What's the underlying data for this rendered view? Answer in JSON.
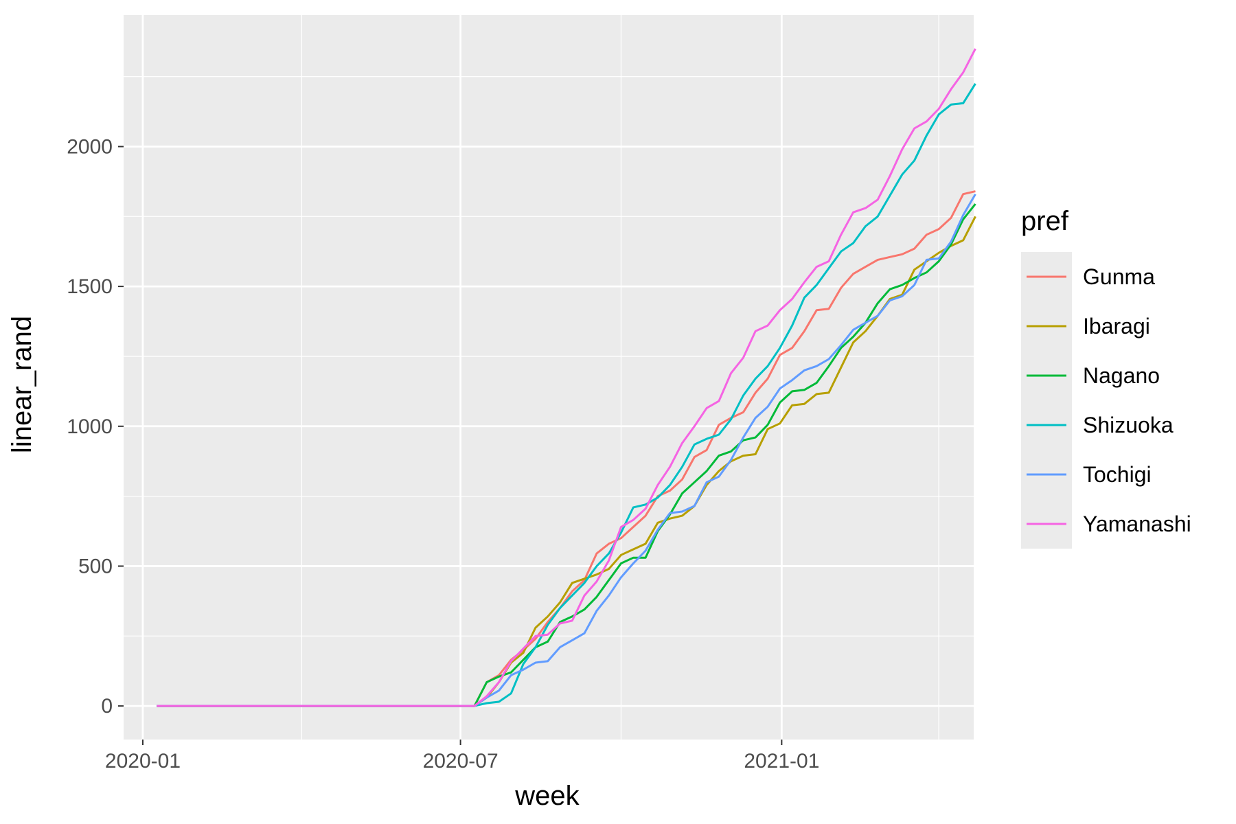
{
  "chart_data": {
    "type": "line",
    "xlabel": "week",
    "ylabel": "linear_rand",
    "x_type": "date",
    "xlim": [
      "2019-12-21",
      "2021-04-21"
    ],
    "ylim": [
      -120,
      2470
    ],
    "x_ticks": [
      {
        "date": "2020-01-01",
        "label": "2020-01"
      },
      {
        "date": "2020-07-01",
        "label": "2020-07"
      },
      {
        "date": "2021-01-01",
        "label": "2021-01"
      }
    ],
    "x_minor_ticks": [
      "2020-04-01",
      "2020-10-01",
      "2021-04-01"
    ],
    "y_ticks": [
      0,
      500,
      1000,
      1500,
      2000
    ],
    "y_minor_ticks": [
      250,
      750,
      1250,
      1750,
      2250
    ],
    "grid": true,
    "panel_color": "#ebebeb",
    "grid_color": "#ffffff",
    "legend": {
      "title": "pref",
      "position": "right"
    },
    "series": [
      {
        "name": "Gunma",
        "color": "#F8766D",
        "points": [
          [
            "2020-01-09",
            0
          ],
          [
            "2020-07-09",
            0
          ],
          [
            "2020-07-16",
            85
          ],
          [
            "2020-07-23",
            110
          ],
          [
            "2020-07-30",
            165
          ],
          [
            "2020-08-06",
            200
          ],
          [
            "2020-08-13",
            240
          ],
          [
            "2020-08-20",
            300
          ],
          [
            "2020-08-27",
            350
          ],
          [
            "2020-09-03",
            410
          ],
          [
            "2020-09-10",
            450
          ],
          [
            "2020-09-17",
            545
          ],
          [
            "2020-09-24",
            580
          ],
          [
            "2020-10-01",
            600
          ],
          [
            "2020-10-08",
            640
          ],
          [
            "2020-10-15",
            680
          ],
          [
            "2020-10-22",
            750
          ],
          [
            "2020-10-29",
            770
          ],
          [
            "2020-11-05",
            810
          ],
          [
            "2020-11-12",
            890
          ],
          [
            "2020-11-19",
            915
          ],
          [
            "2020-11-26",
            1005
          ],
          [
            "2020-12-03",
            1030
          ],
          [
            "2020-12-10",
            1050
          ],
          [
            "2020-12-17",
            1120
          ],
          [
            "2020-12-24",
            1170
          ],
          [
            "2020-12-31",
            1255
          ],
          [
            "2021-01-07",
            1280
          ],
          [
            "2021-01-14",
            1340
          ],
          [
            "2021-01-21",
            1415
          ],
          [
            "2021-01-28",
            1420
          ],
          [
            "2021-02-04",
            1495
          ],
          [
            "2021-02-11",
            1545
          ],
          [
            "2021-02-18",
            1570
          ],
          [
            "2021-02-25",
            1595
          ],
          [
            "2021-03-04",
            1605
          ],
          [
            "2021-03-11",
            1615
          ],
          [
            "2021-03-18",
            1635
          ],
          [
            "2021-03-25",
            1685
          ],
          [
            "2021-04-01",
            1705
          ],
          [
            "2021-04-08",
            1745
          ],
          [
            "2021-04-15",
            1830
          ],
          [
            "2021-04-22",
            1840
          ]
        ]
      },
      {
        "name": "Ibaragi",
        "color": "#B79F00",
        "points": [
          [
            "2020-01-09",
            0
          ],
          [
            "2020-07-09",
            0
          ],
          [
            "2020-07-16",
            30
          ],
          [
            "2020-07-23",
            85
          ],
          [
            "2020-07-30",
            155
          ],
          [
            "2020-08-06",
            190
          ],
          [
            "2020-08-13",
            280
          ],
          [
            "2020-08-20",
            320
          ],
          [
            "2020-08-27",
            370
          ],
          [
            "2020-09-03",
            440
          ],
          [
            "2020-09-10",
            455
          ],
          [
            "2020-09-17",
            470
          ],
          [
            "2020-09-24",
            490
          ],
          [
            "2020-10-01",
            540
          ],
          [
            "2020-10-08",
            560
          ],
          [
            "2020-10-15",
            580
          ],
          [
            "2020-10-22",
            655
          ],
          [
            "2020-10-29",
            670
          ],
          [
            "2020-11-05",
            680
          ],
          [
            "2020-11-12",
            715
          ],
          [
            "2020-11-19",
            790
          ],
          [
            "2020-11-26",
            840
          ],
          [
            "2020-12-03",
            875
          ],
          [
            "2020-12-10",
            895
          ],
          [
            "2020-12-17",
            900
          ],
          [
            "2020-12-24",
            990
          ],
          [
            "2020-12-31",
            1010
          ],
          [
            "2021-01-07",
            1075
          ],
          [
            "2021-01-14",
            1080
          ],
          [
            "2021-01-21",
            1115
          ],
          [
            "2021-01-28",
            1120
          ],
          [
            "2021-02-04",
            1210
          ],
          [
            "2021-02-11",
            1300
          ],
          [
            "2021-02-18",
            1340
          ],
          [
            "2021-02-25",
            1395
          ],
          [
            "2021-03-04",
            1455
          ],
          [
            "2021-03-11",
            1470
          ],
          [
            "2021-03-18",
            1560
          ],
          [
            "2021-03-25",
            1590
          ],
          [
            "2021-04-01",
            1620
          ],
          [
            "2021-04-08",
            1645
          ],
          [
            "2021-04-15",
            1665
          ],
          [
            "2021-04-22",
            1750
          ]
        ]
      },
      {
        "name": "Nagano",
        "color": "#00BA38",
        "points": [
          [
            "2020-01-09",
            0
          ],
          [
            "2020-07-09",
            0
          ],
          [
            "2020-07-16",
            85
          ],
          [
            "2020-07-23",
            105
          ],
          [
            "2020-07-30",
            120
          ],
          [
            "2020-08-06",
            165
          ],
          [
            "2020-08-13",
            210
          ],
          [
            "2020-08-20",
            230
          ],
          [
            "2020-08-27",
            300
          ],
          [
            "2020-09-03",
            320
          ],
          [
            "2020-09-10",
            345
          ],
          [
            "2020-09-17",
            390
          ],
          [
            "2020-09-24",
            450
          ],
          [
            "2020-10-01",
            510
          ],
          [
            "2020-10-08",
            530
          ],
          [
            "2020-10-15",
            530
          ],
          [
            "2020-10-22",
            625
          ],
          [
            "2020-10-29",
            685
          ],
          [
            "2020-11-05",
            760
          ],
          [
            "2020-11-12",
            800
          ],
          [
            "2020-11-19",
            840
          ],
          [
            "2020-11-26",
            895
          ],
          [
            "2020-12-03",
            910
          ],
          [
            "2020-12-10",
            950
          ],
          [
            "2020-12-17",
            960
          ],
          [
            "2020-12-24",
            1005
          ],
          [
            "2020-12-31",
            1085
          ],
          [
            "2021-01-07",
            1125
          ],
          [
            "2021-01-14",
            1130
          ],
          [
            "2021-01-21",
            1155
          ],
          [
            "2021-01-28",
            1215
          ],
          [
            "2021-02-04",
            1280
          ],
          [
            "2021-02-11",
            1320
          ],
          [
            "2021-02-18",
            1370
          ],
          [
            "2021-02-25",
            1440
          ],
          [
            "2021-03-04",
            1490
          ],
          [
            "2021-03-11",
            1505
          ],
          [
            "2021-03-18",
            1530
          ],
          [
            "2021-03-25",
            1550
          ],
          [
            "2021-04-01",
            1590
          ],
          [
            "2021-04-08",
            1650
          ],
          [
            "2021-04-15",
            1740
          ],
          [
            "2021-04-22",
            1795
          ]
        ]
      },
      {
        "name": "Shizuoka",
        "color": "#00BFC4",
        "points": [
          [
            "2020-01-09",
            0
          ],
          [
            "2020-07-09",
            0
          ],
          [
            "2020-07-16",
            10
          ],
          [
            "2020-07-23",
            15
          ],
          [
            "2020-07-30",
            45
          ],
          [
            "2020-08-06",
            150
          ],
          [
            "2020-08-13",
            210
          ],
          [
            "2020-08-20",
            290
          ],
          [
            "2020-08-27",
            350
          ],
          [
            "2020-09-03",
            395
          ],
          [
            "2020-09-10",
            440
          ],
          [
            "2020-09-17",
            500
          ],
          [
            "2020-09-24",
            545
          ],
          [
            "2020-10-01",
            620
          ],
          [
            "2020-10-08",
            710
          ],
          [
            "2020-10-15",
            720
          ],
          [
            "2020-10-22",
            745
          ],
          [
            "2020-10-29",
            790
          ],
          [
            "2020-11-05",
            855
          ],
          [
            "2020-11-12",
            935
          ],
          [
            "2020-11-19",
            955
          ],
          [
            "2020-11-26",
            970
          ],
          [
            "2020-12-03",
            1025
          ],
          [
            "2020-12-10",
            1110
          ],
          [
            "2020-12-17",
            1170
          ],
          [
            "2020-12-24",
            1215
          ],
          [
            "2020-12-31",
            1280
          ],
          [
            "2021-01-07",
            1360
          ],
          [
            "2021-01-14",
            1460
          ],
          [
            "2021-01-21",
            1505
          ],
          [
            "2021-01-28",
            1565
          ],
          [
            "2021-02-04",
            1625
          ],
          [
            "2021-02-11",
            1655
          ],
          [
            "2021-02-18",
            1715
          ],
          [
            "2021-02-25",
            1750
          ],
          [
            "2021-03-04",
            1825
          ],
          [
            "2021-03-11",
            1900
          ],
          [
            "2021-03-18",
            1950
          ],
          [
            "2021-03-25",
            2040
          ],
          [
            "2021-04-01",
            2115
          ],
          [
            "2021-04-08",
            2150
          ],
          [
            "2021-04-15",
            2155
          ],
          [
            "2021-04-22",
            2225
          ]
        ]
      },
      {
        "name": "Tochigi",
        "color": "#619CFF",
        "points": [
          [
            "2020-01-09",
            0
          ],
          [
            "2020-07-09",
            0
          ],
          [
            "2020-07-16",
            30
          ],
          [
            "2020-07-23",
            55
          ],
          [
            "2020-07-30",
            110
          ],
          [
            "2020-08-06",
            130
          ],
          [
            "2020-08-13",
            155
          ],
          [
            "2020-08-20",
            160
          ],
          [
            "2020-08-27",
            210
          ],
          [
            "2020-09-03",
            235
          ],
          [
            "2020-09-10",
            260
          ],
          [
            "2020-09-17",
            340
          ],
          [
            "2020-09-24",
            395
          ],
          [
            "2020-10-01",
            460
          ],
          [
            "2020-10-08",
            510
          ],
          [
            "2020-10-15",
            555
          ],
          [
            "2020-10-22",
            630
          ],
          [
            "2020-10-29",
            690
          ],
          [
            "2020-11-05",
            695
          ],
          [
            "2020-11-12",
            715
          ],
          [
            "2020-11-19",
            800
          ],
          [
            "2020-11-26",
            820
          ],
          [
            "2020-12-03",
            880
          ],
          [
            "2020-12-10",
            960
          ],
          [
            "2020-12-17",
            1030
          ],
          [
            "2020-12-24",
            1070
          ],
          [
            "2020-12-31",
            1135
          ],
          [
            "2021-01-07",
            1165
          ],
          [
            "2021-01-14",
            1200
          ],
          [
            "2021-01-21",
            1215
          ],
          [
            "2021-01-28",
            1240
          ],
          [
            "2021-02-04",
            1290
          ],
          [
            "2021-02-11",
            1345
          ],
          [
            "2021-02-18",
            1370
          ],
          [
            "2021-02-25",
            1395
          ],
          [
            "2021-03-04",
            1450
          ],
          [
            "2021-03-11",
            1465
          ],
          [
            "2021-03-18",
            1505
          ],
          [
            "2021-03-25",
            1595
          ],
          [
            "2021-04-01",
            1600
          ],
          [
            "2021-04-08",
            1660
          ],
          [
            "2021-04-15",
            1755
          ],
          [
            "2021-04-22",
            1830
          ]
        ]
      },
      {
        "name": "Yamanashi",
        "color": "#F564E3",
        "points": [
          [
            "2020-01-09",
            0
          ],
          [
            "2020-07-09",
            0
          ],
          [
            "2020-07-16",
            35
          ],
          [
            "2020-07-23",
            85
          ],
          [
            "2020-07-30",
            160
          ],
          [
            "2020-08-06",
            205
          ],
          [
            "2020-08-13",
            250
          ],
          [
            "2020-08-20",
            255
          ],
          [
            "2020-08-27",
            295
          ],
          [
            "2020-09-03",
            305
          ],
          [
            "2020-09-10",
            395
          ],
          [
            "2020-09-17",
            445
          ],
          [
            "2020-09-24",
            520
          ],
          [
            "2020-10-01",
            640
          ],
          [
            "2020-10-08",
            665
          ],
          [
            "2020-10-15",
            705
          ],
          [
            "2020-10-22",
            790
          ],
          [
            "2020-10-29",
            855
          ],
          [
            "2020-11-05",
            940
          ],
          [
            "2020-11-12",
            1000
          ],
          [
            "2020-11-19",
            1065
          ],
          [
            "2020-11-26",
            1090
          ],
          [
            "2020-12-03",
            1190
          ],
          [
            "2020-12-10",
            1245
          ],
          [
            "2020-12-17",
            1340
          ],
          [
            "2020-12-24",
            1360
          ],
          [
            "2020-12-31",
            1415
          ],
          [
            "2021-01-07",
            1455
          ],
          [
            "2021-01-14",
            1515
          ],
          [
            "2021-01-21",
            1570
          ],
          [
            "2021-01-28",
            1590
          ],
          [
            "2021-02-04",
            1685
          ],
          [
            "2021-02-11",
            1765
          ],
          [
            "2021-02-18",
            1780
          ],
          [
            "2021-02-25",
            1810
          ],
          [
            "2021-03-04",
            1895
          ],
          [
            "2021-03-11",
            1990
          ],
          [
            "2021-03-18",
            2065
          ],
          [
            "2021-03-25",
            2090
          ],
          [
            "2021-04-01",
            2135
          ],
          [
            "2021-04-08",
            2205
          ],
          [
            "2021-04-15",
            2265
          ],
          [
            "2021-04-22",
            2350
          ]
        ]
      }
    ]
  }
}
